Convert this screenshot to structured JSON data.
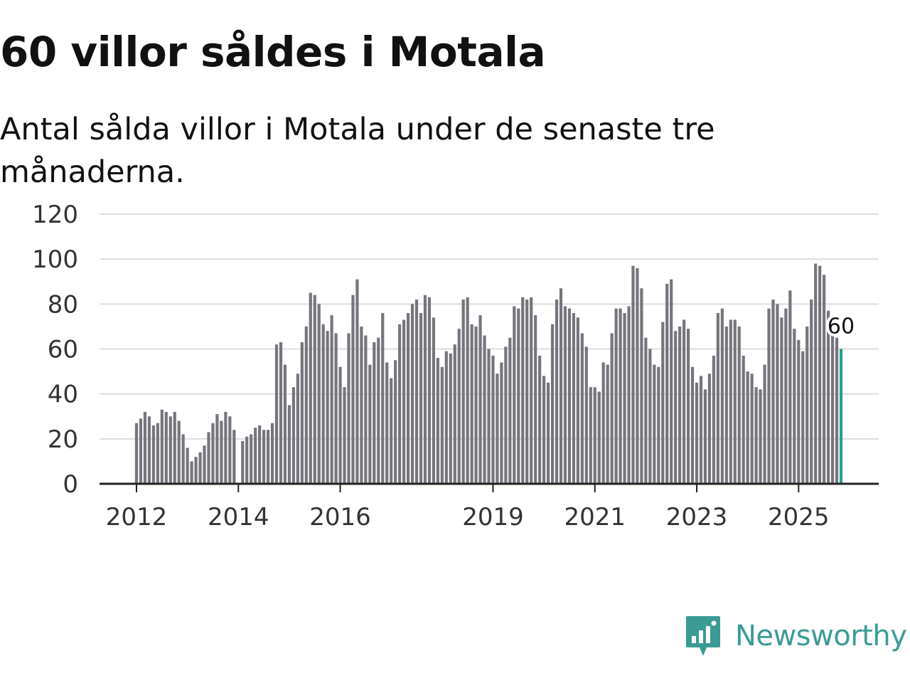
{
  "title": "60 villor såldes i Motala",
  "subtitle": "Antal sålda villor i Motala under de senaste tre månaderna.",
  "brand": {
    "name": "Newsworthy",
    "color": "#3a9b95",
    "icon": "newsworthy-logo-icon"
  },
  "chart_data": {
    "type": "bar",
    "title": "60 villor såldes i Motala",
    "xlabel": "",
    "ylabel": "",
    "ylim": [
      0,
      120
    ],
    "yticks": [
      0,
      20,
      40,
      60,
      80,
      100,
      120
    ],
    "grid": true,
    "x_tick_labels": [
      {
        "label": "2012",
        "index": 0
      },
      {
        "label": "2014",
        "index": 24
      },
      {
        "label": "2016",
        "index": 48
      },
      {
        "label": "2019",
        "index": 84
      },
      {
        "label": "2021",
        "index": 108
      },
      {
        "label": "2023",
        "index": 132
      },
      {
        "label": "2025",
        "index": 156
      }
    ],
    "colors": {
      "bar": "#76757d",
      "highlight": "#2a9d8f",
      "grid": "#dddddd",
      "axis": "#222222"
    },
    "highlight": {
      "label": "60",
      "value": 60
    },
    "series": [
      {
        "name": "Antal sålda villor",
        "values": [
          27,
          29,
          32,
          30,
          26,
          27,
          33,
          32,
          30,
          32,
          28,
          22,
          16,
          10,
          12,
          14,
          17,
          23,
          27,
          31,
          28,
          32,
          30,
          24,
          null,
          19,
          21,
          22,
          25,
          26,
          24,
          24,
          27,
          62,
          63,
          53,
          35,
          43,
          49,
          63,
          70,
          85,
          84,
          80,
          71,
          68,
          75,
          67,
          52,
          43,
          67,
          84,
          91,
          70,
          66,
          53,
          63,
          65,
          76,
          54,
          47,
          55,
          71,
          73,
          76,
          80,
          82,
          76,
          84,
          83,
          74,
          56,
          52,
          59,
          58,
          62,
          69,
          82,
          83,
          71,
          70,
          75,
          66,
          60,
          57,
          49,
          54,
          61,
          65,
          79,
          78,
          83,
          82,
          83,
          75,
          57,
          48,
          45,
          71,
          82,
          87,
          79,
          78,
          76,
          74,
          67,
          61,
          43,
          43,
          41,
          54,
          53,
          67,
          78,
          78,
          76,
          79,
          97,
          96,
          87,
          65,
          60,
          53,
          52,
          72,
          89,
          91,
          68,
          70,
          73,
          69,
          52,
          45,
          48,
          42,
          49,
          57,
          76,
          78,
          70,
          73,
          73,
          70,
          57,
          50,
          49,
          43,
          42,
          53,
          78,
          82,
          80,
          74,
          78,
          86,
          69,
          64,
          59,
          70,
          82,
          98,
          97,
          93,
          77,
          68,
          65,
          60
        ]
      }
    ]
  }
}
